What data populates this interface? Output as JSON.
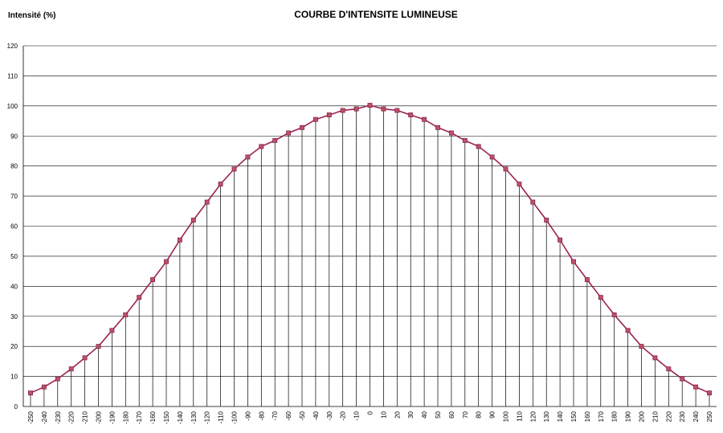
{
  "chart_data": {
    "type": "line",
    "title": "COURBE D'INTENSITE LUMINEUSE",
    "ylabel": "Intensité (%)",
    "xlabel": "",
    "ylim": [
      0,
      120
    ],
    "yticks": [
      "0",
      "10",
      "20",
      "30",
      "40",
      "50",
      "60",
      "70",
      "80",
      "90",
      "100",
      "110",
      "120"
    ],
    "grid": "horizontal",
    "droplines": true,
    "legend": "none",
    "colors": {
      "line": "#9b2257",
      "marker": "#c0506a",
      "marker_edge": "#7a1f3a",
      "grid": "#000000"
    },
    "x": [
      -250,
      -240,
      -230,
      -220,
      -210,
      -200,
      -190,
      -180,
      -170,
      -160,
      -150,
      -140,
      -130,
      -120,
      -110,
      -100,
      -90,
      -80,
      -70,
      -60,
      -50,
      -40,
      -30,
      -20,
      -10,
      0,
      10,
      20,
      30,
      40,
      50,
      60,
      70,
      80,
      90,
      100,
      110,
      120,
      130,
      140,
      150,
      160,
      170,
      180,
      190,
      200,
      210,
      220,
      230,
      240,
      250
    ],
    "xticks": [
      "-250",
      "-240",
      "-230",
      "-220",
      "-210",
      "-200",
      "-190",
      "-180",
      "-170",
      "-160",
      "-150",
      "-140",
      "-130",
      "-120",
      "-110",
      "-100",
      "-90",
      "-80",
      "-70",
      "-60",
      "-50",
      "-40",
      "-30",
      "-20",
      "-10",
      "0",
      "10",
      "20",
      "30",
      "40",
      "50",
      "60",
      "70",
      "80",
      "90",
      "100",
      "110",
      "120",
      "130",
      "140",
      "150",
      "160",
      "170",
      "180",
      "190",
      "200",
      "210",
      "220",
      "230",
      "240",
      "250"
    ],
    "series": [
      {
        "values": [
          4.5,
          6.5,
          9.2,
          12.5,
          16.2,
          20,
          25.3,
          30.5,
          36.3,
          42.2,
          48.2,
          55.4,
          62,
          68,
          74,
          79,
          83,
          86.5,
          88.5,
          91,
          92.8,
          95.5,
          97,
          98.5,
          99,
          100.2,
          99,
          98.5,
          97,
          95.5,
          92.8,
          91,
          88.5,
          86.5,
          83,
          79,
          74,
          68,
          62,
          55.4,
          48.2,
          42.2,
          36.3,
          30.5,
          25.3,
          20,
          16.2,
          12.5,
          9.2,
          6.5,
          4.5
        ]
      }
    ]
  }
}
